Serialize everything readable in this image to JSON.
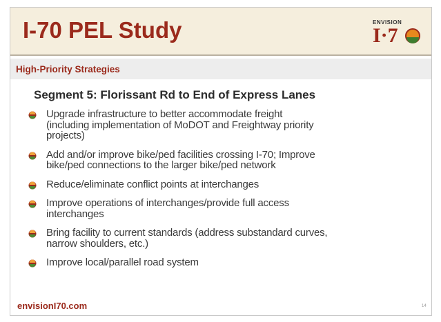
{
  "header": {
    "title": "I-70 PEL Study",
    "logo_top": "ENVISION",
    "logo_bottom": "I·7"
  },
  "subtitle": "High-Priority Strategies",
  "heading": "Segment 5: Florissant Rd to End of Express Lanes",
  "bullets": [
    [
      "Upgrade infrastructure to better accommodate freight",
      "(including implementation of MoDOT and Freightway priority",
      "projects)"
    ],
    [
      "Add and/or improve bike/ped facilities crossing I-70; Improve",
      "bike/ped connections to the larger bike/ped network"
    ],
    [
      "Reduce/eliminate conflict points at interchanges"
    ],
    [
      "Improve operations of interchanges/provide full access",
      "interchanges"
    ],
    [
      "Bring facility to current standards (address substandard curves,",
      "narrow shoulders, etc.)"
    ],
    [
      "Improve local/parallel road system"
    ]
  ],
  "footer": {
    "url": "envisionI70.com",
    "page": "14"
  }
}
